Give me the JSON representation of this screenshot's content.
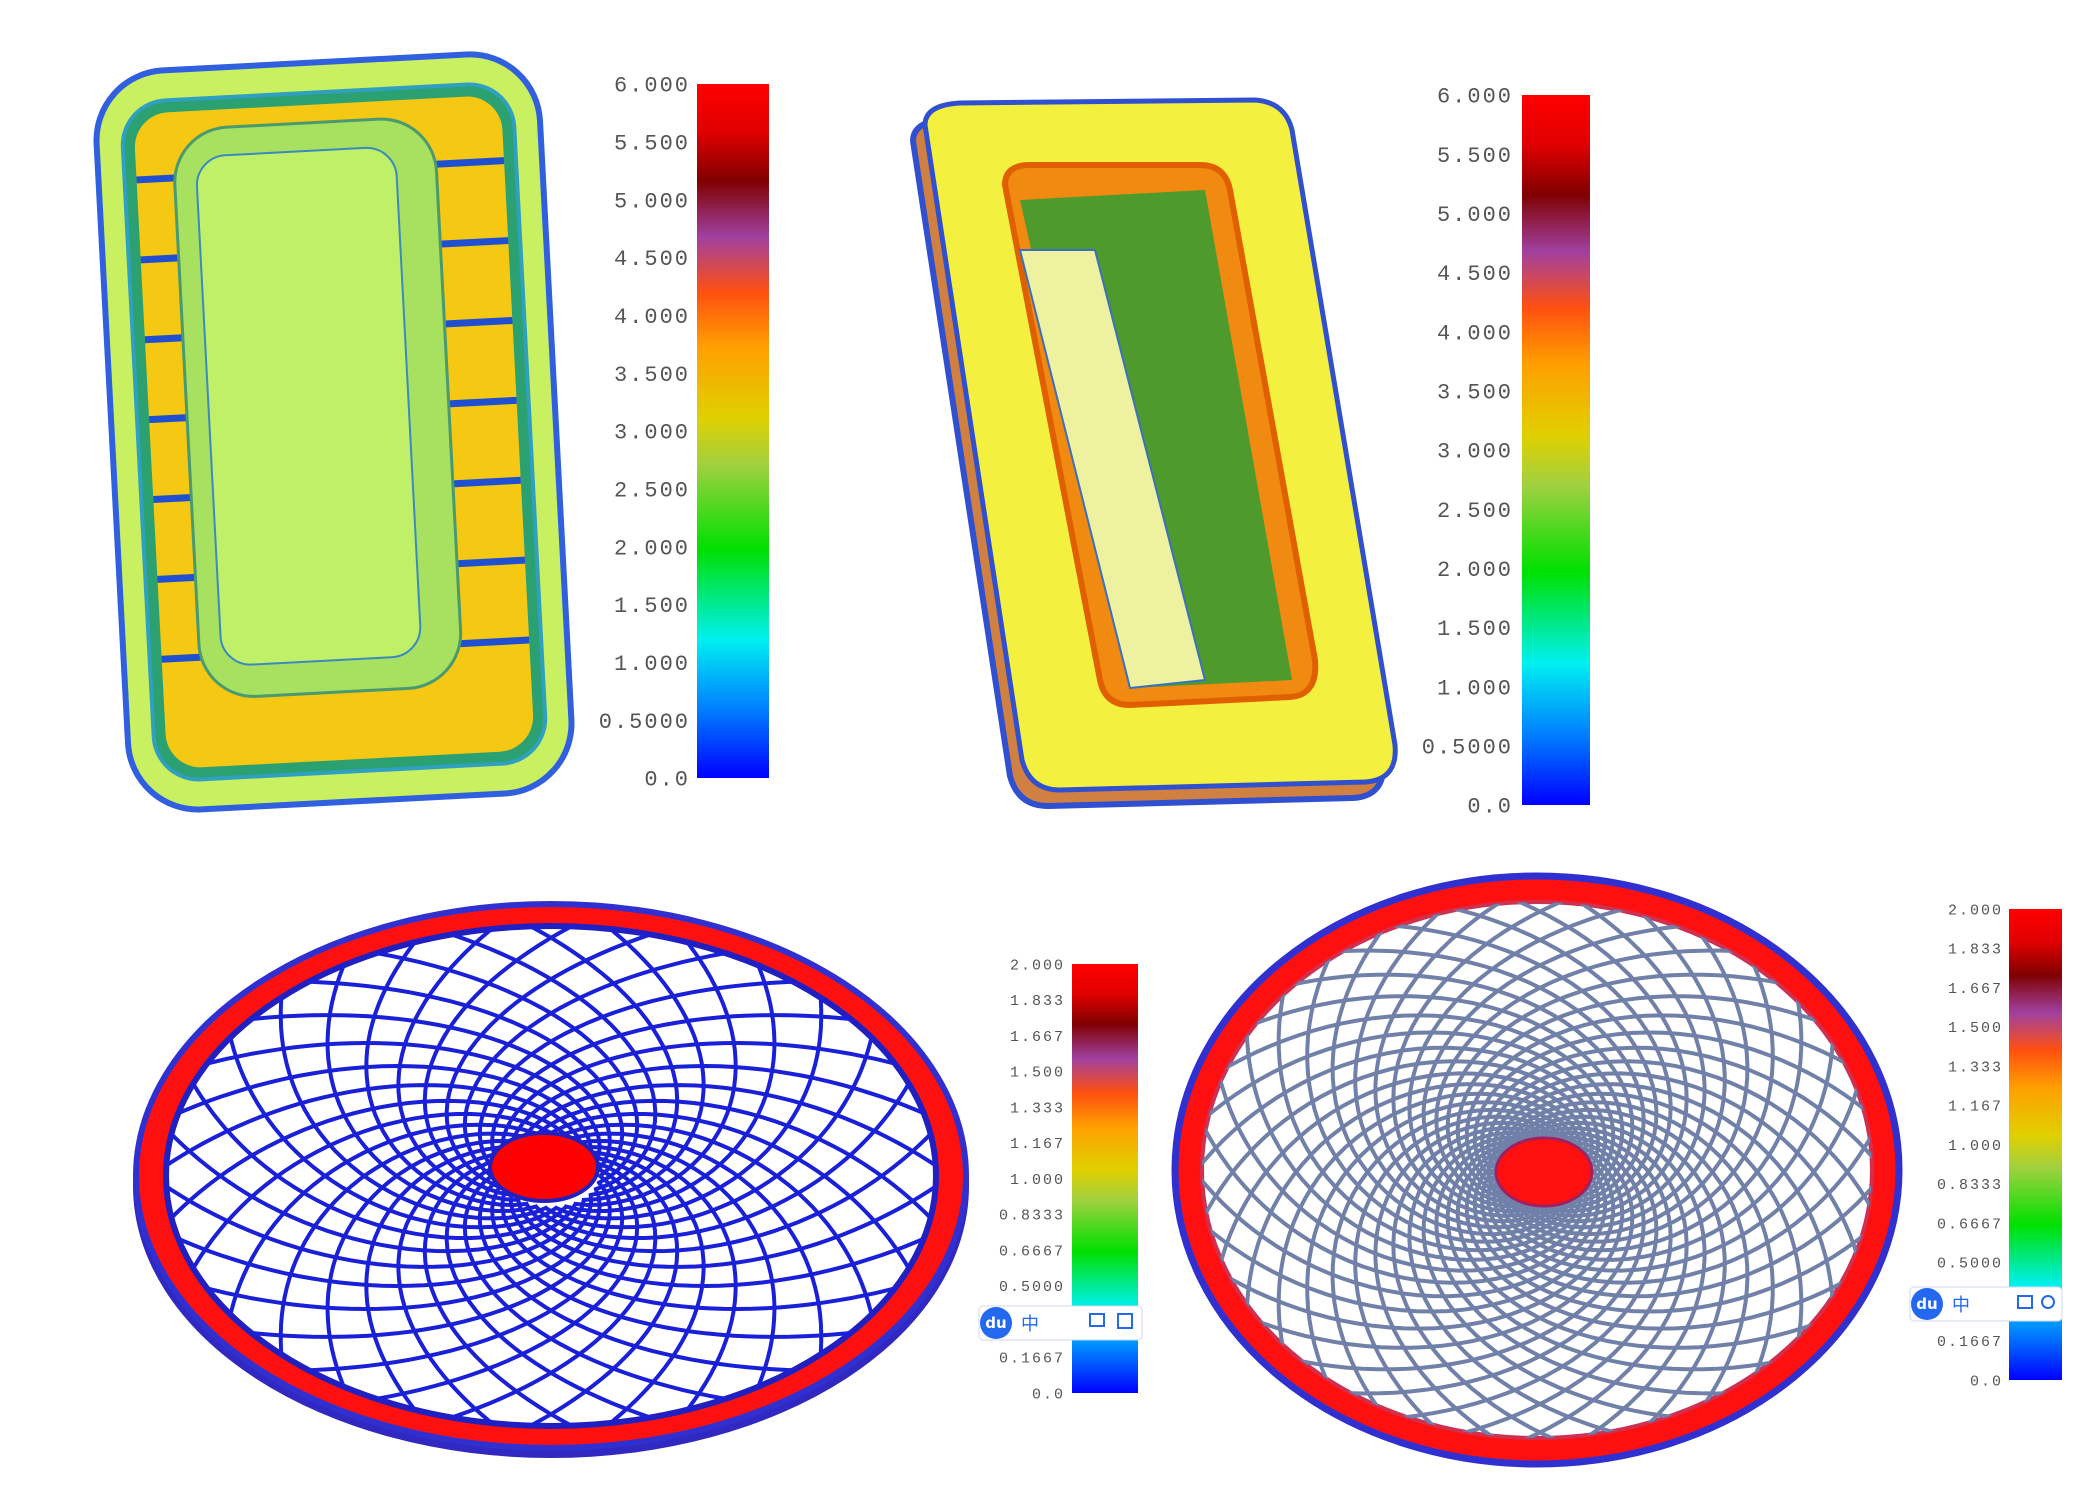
{
  "panels": [
    {
      "legend": {
        "labels": [
          "6.000",
          "5.500",
          "5.000",
          "4.500",
          "4.000",
          "3.500",
          "3.000",
          "2.500",
          "2.000",
          "1.500",
          "1.000",
          "0.5000",
          "0.0"
        ]
      }
    },
    {
      "legend": {
        "labels": [
          "6.000",
          "5.500",
          "5.000",
          "4.500",
          "4.000",
          "3.500",
          "3.000",
          "2.500",
          "2.000",
          "1.500",
          "1.000",
          "0.5000",
          "0.0"
        ]
      }
    },
    {
      "legend": {
        "labels": [
          "2.000",
          "1.833",
          "1.667",
          "1.500",
          "1.333",
          "1.167",
          "1.000",
          "0.8333",
          "0.6667",
          "0.5000",
          "0.1667",
          "0.0"
        ]
      },
      "toolbar": {
        "logo": "du",
        "lang": "中"
      }
    },
    {
      "legend": {
        "labels": [
          "2.000",
          "1.833",
          "1.667",
          "1.500",
          "1.333",
          "1.167",
          "1.000",
          "0.8333",
          "0.6667",
          "0.5000",
          "0.1667",
          "0.0"
        ]
      },
      "toolbar": {
        "logo": "du",
        "lang": "中"
      }
    }
  ]
}
